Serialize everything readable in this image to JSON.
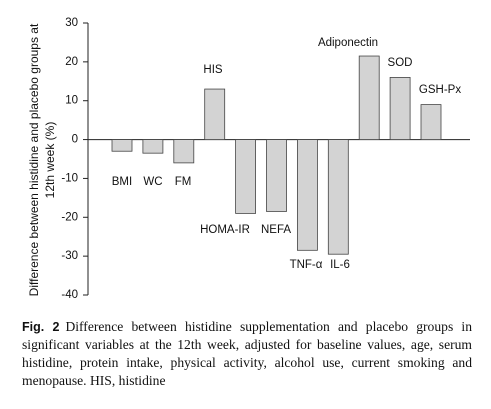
{
  "chart_data": {
    "type": "bar",
    "ylabel": "Difference between histidine and placebo groups at 12th week (%)",
    "categories": [
      "BMI",
      "WC",
      "FM",
      "HIS",
      "HOMA-IR",
      "NEFA",
      "TNF-α",
      "IL-6",
      "Adiponectin",
      "SOD",
      "GSH-Px"
    ],
    "values": [
      -3,
      -3.5,
      -6,
      13,
      -19,
      -18.5,
      -28.5,
      -29.5,
      21.5,
      16,
      9
    ],
    "color": "#d3d3d3",
    "ylim": [
      -40,
      30
    ],
    "yticks": [
      -40,
      -30,
      -20,
      -10,
      0,
      10,
      20,
      30
    ],
    "grid": false,
    "caption_label": "Fig. 2",
    "caption": "Difference between histidine supplementation and placebo groups in significant variables at the 12th week, adjusted for baseline values, age, serum histidine, protein intake, physical activity, alcohol use, current smoking and menopause. HIS, histidine"
  }
}
